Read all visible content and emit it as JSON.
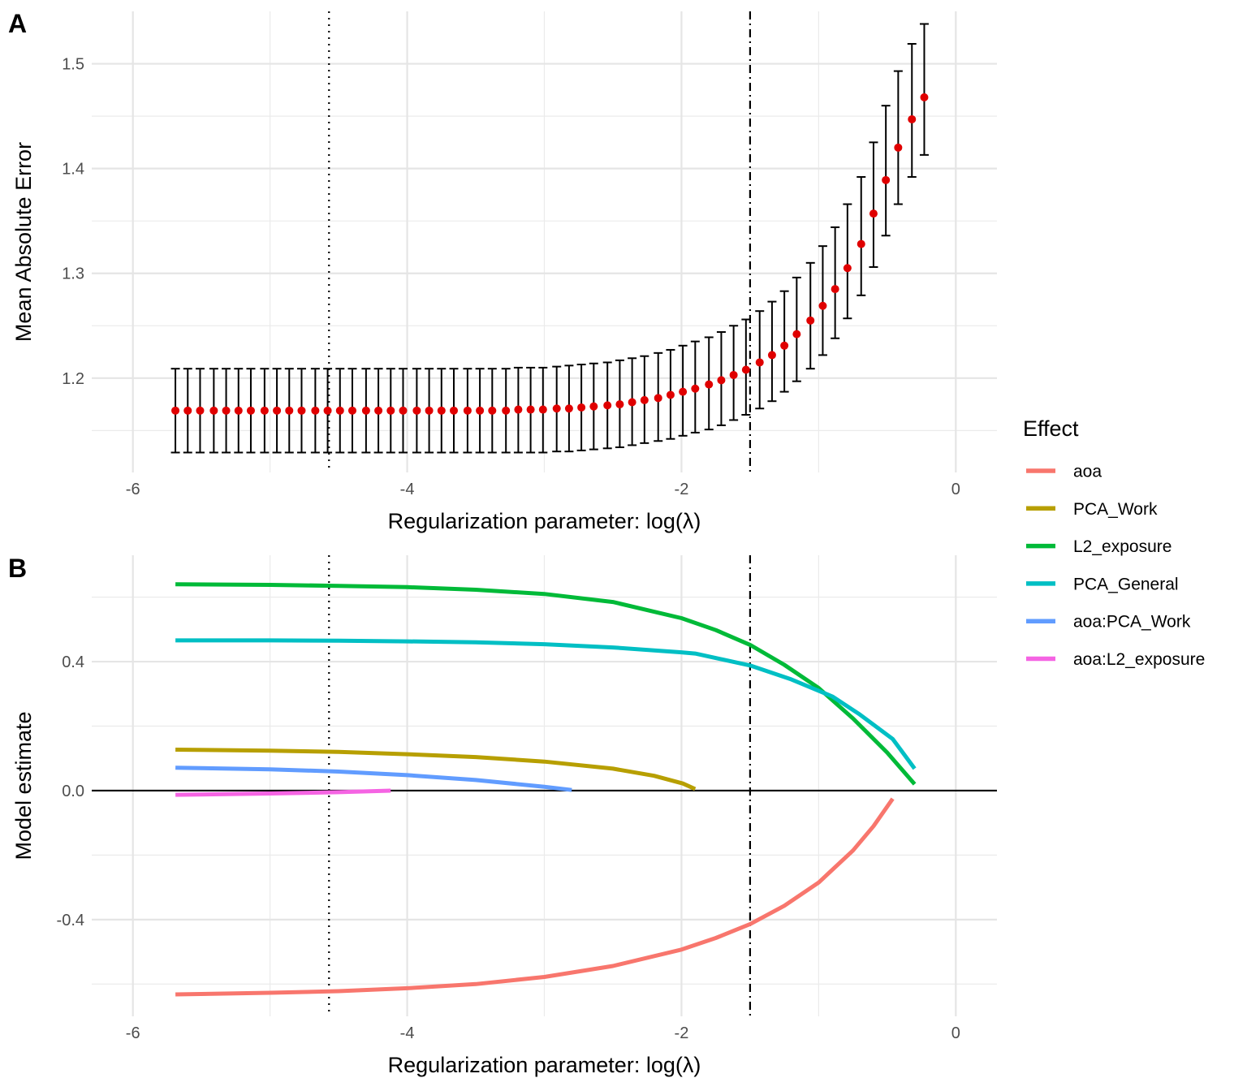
{
  "chart_data": [
    {
      "panel": "A",
      "type": "scatter",
      "subtype": "points-with-errorbars",
      "xlabel": "Regularization parameter: log(λ)",
      "ylabel": "Mean Absolute Error",
      "xlim": [
        -6.3,
        0.3
      ],
      "ylim": [
        1.11,
        1.55
      ],
      "xticks": [
        -6,
        -4,
        -2,
        0
      ],
      "xtick_labels": [
        "-6",
        "-4",
        "-2",
        "0"
      ],
      "yticks": [
        1.2,
        1.3,
        1.4,
        1.5
      ],
      "ytick_labels": [
        "1.2",
        "1.3",
        "1.4",
        "1.5"
      ],
      "grid": true,
      "point_color": "#e00000",
      "errorbar_color": "#000000",
      "vlines": [
        {
          "x": -4.57,
          "style": "dotted"
        },
        {
          "x": -1.5,
          "style": "dotdash"
        }
      ],
      "x": [
        -5.69,
        -5.6,
        -5.51,
        -5.41,
        -5.32,
        -5.23,
        -5.14,
        -5.04,
        -4.95,
        -4.86,
        -4.77,
        -4.67,
        -4.58,
        -4.49,
        -4.4,
        -4.3,
        -4.21,
        -4.12,
        -4.03,
        -3.93,
        -3.84,
        -3.75,
        -3.66,
        -3.56,
        -3.47,
        -3.38,
        -3.28,
        -3.19,
        -3.1,
        -3.01,
        -2.91,
        -2.82,
        -2.73,
        -2.64,
        -2.54,
        -2.45,
        -2.36,
        -2.27,
        -2.17,
        -2.08,
        -1.99,
        -1.9,
        -1.8,
        -1.71,
        -1.62,
        -1.53,
        -1.43,
        -1.34,
        -1.25,
        -1.16,
        -1.06,
        -0.97,
        -0.88,
        -0.79,
        -0.69,
        -0.6,
        -0.51,
        -0.42,
        -0.32,
        -0.23
      ],
      "mae": [
        1.169,
        1.169,
        1.169,
        1.169,
        1.169,
        1.169,
        1.169,
        1.169,
        1.169,
        1.169,
        1.169,
        1.169,
        1.169,
        1.169,
        1.169,
        1.169,
        1.169,
        1.169,
        1.169,
        1.169,
        1.169,
        1.169,
        1.169,
        1.169,
        1.169,
        1.169,
        1.169,
        1.17,
        1.17,
        1.17,
        1.171,
        1.171,
        1.172,
        1.173,
        1.174,
        1.175,
        1.177,
        1.179,
        1.181,
        1.184,
        1.187,
        1.19,
        1.194,
        1.198,
        1.203,
        1.208,
        1.215,
        1.222,
        1.231,
        1.242,
        1.255,
        1.269,
        1.285,
        1.305,
        1.328,
        1.357,
        1.389,
        1.42,
        1.447,
        1.468
      ],
      "lower": [
        1.129,
        1.129,
        1.129,
        1.129,
        1.129,
        1.129,
        1.129,
        1.129,
        1.129,
        1.129,
        1.129,
        1.129,
        1.129,
        1.129,
        1.129,
        1.129,
        1.129,
        1.129,
        1.129,
        1.129,
        1.129,
        1.129,
        1.129,
        1.129,
        1.129,
        1.129,
        1.129,
        1.129,
        1.129,
        1.129,
        1.13,
        1.13,
        1.131,
        1.132,
        1.133,
        1.134,
        1.136,
        1.138,
        1.14,
        1.142,
        1.145,
        1.148,
        1.151,
        1.155,
        1.16,
        1.165,
        1.171,
        1.178,
        1.187,
        1.197,
        1.209,
        1.222,
        1.238,
        1.257,
        1.279,
        1.306,
        1.336,
        1.366,
        1.392,
        1.413
      ],
      "upper": [
        1.209,
        1.209,
        1.209,
        1.209,
        1.209,
        1.209,
        1.209,
        1.209,
        1.209,
        1.209,
        1.209,
        1.209,
        1.209,
        1.209,
        1.209,
        1.209,
        1.209,
        1.209,
        1.209,
        1.209,
        1.209,
        1.209,
        1.209,
        1.209,
        1.209,
        1.209,
        1.209,
        1.21,
        1.21,
        1.21,
        1.211,
        1.212,
        1.213,
        1.214,
        1.215,
        1.217,
        1.219,
        1.221,
        1.224,
        1.227,
        1.231,
        1.235,
        1.239,
        1.244,
        1.25,
        1.256,
        1.264,
        1.273,
        1.283,
        1.296,
        1.31,
        1.326,
        1.344,
        1.366,
        1.392,
        1.425,
        1.46,
        1.493,
        1.519,
        1.538
      ]
    },
    {
      "panel": "B",
      "type": "line",
      "xlabel": "Regularization parameter: log(λ)",
      "ylabel": "Model estimate",
      "xlim": [
        -6.3,
        0.3
      ],
      "ylim": [
        -0.7,
        0.73
      ],
      "xticks": [
        -6,
        -4,
        -2,
        0
      ],
      "xtick_labels": [
        "-6",
        "-4",
        "-2",
        "0"
      ],
      "yticks": [
        -0.4,
        0.0,
        0.4
      ],
      "ytick_labels": [
        "-0.4",
        "0.0",
        "0.4"
      ],
      "grid": true,
      "hline": 0,
      "vlines": [
        {
          "x": -4.57,
          "style": "dotted"
        },
        {
          "x": -1.5,
          "style": "dotdash"
        }
      ],
      "legend": {
        "title": "Effect",
        "position": "right"
      },
      "series": [
        {
          "name": "aoa",
          "color": "#F8766D",
          "x": [
            -5.69,
            -5.0,
            -4.5,
            -4.0,
            -3.5,
            -3.0,
            -2.5,
            -2.0,
            -1.75,
            -1.5,
            -1.25,
            -1.0,
            -0.75,
            -0.6,
            -0.46
          ],
          "y": [
            -0.632,
            -0.627,
            -0.622,
            -0.613,
            -0.6,
            -0.578,
            -0.544,
            -0.493,
            -0.457,
            -0.414,
            -0.357,
            -0.285,
            -0.186,
            -0.11,
            -0.025
          ]
        },
        {
          "name": "PCA_Work",
          "color": "#B79F00",
          "x": [
            -5.69,
            -5.0,
            -4.5,
            -4.0,
            -3.5,
            -3.0,
            -2.5,
            -2.2,
            -1.99,
            -1.9
          ],
          "y": [
            0.127,
            0.124,
            0.12,
            0.113,
            0.104,
            0.09,
            0.068,
            0.046,
            0.022,
            0.005
          ]
        },
        {
          "name": "L2_exposure",
          "color": "#00BA38",
          "x": [
            -5.69,
            -5.0,
            -4.5,
            -4.0,
            -3.5,
            -3.0,
            -2.5,
            -2.0,
            -1.75,
            -1.5,
            -1.25,
            -1.0,
            -0.75,
            -0.5,
            -0.3
          ],
          "y": [
            0.64,
            0.638,
            0.635,
            0.631,
            0.623,
            0.61,
            0.585,
            0.535,
            0.498,
            0.452,
            0.39,
            0.318,
            0.224,
            0.118,
            0.02
          ]
        },
        {
          "name": "PCA_General",
          "color": "#00BFC4",
          "x": [
            -5.69,
            -5.0,
            -4.5,
            -4.0,
            -3.5,
            -3.0,
            -2.5,
            -2.0,
            -1.9,
            -1.5,
            -1.2,
            -0.9,
            -0.7,
            -0.46,
            -0.3
          ],
          "y": [
            0.466,
            0.466,
            0.465,
            0.463,
            0.46,
            0.454,
            0.444,
            0.429,
            0.425,
            0.388,
            0.345,
            0.292,
            0.236,
            0.16,
            0.068
          ]
        },
        {
          "name": "aoa:PCA_Work",
          "color": "#619CFF",
          "x": [
            -5.69,
            -5.0,
            -4.5,
            -4.0,
            -3.5,
            -3.0,
            -2.8
          ],
          "y": [
            0.071,
            0.066,
            0.059,
            0.048,
            0.033,
            0.012,
            0.002
          ]
        },
        {
          "name": "aoa:L2_exposure",
          "color": "#F564E3",
          "x": [
            -5.69,
            -5.0,
            -4.5,
            -4.12
          ],
          "y": [
            -0.013,
            -0.009,
            -0.005,
            0.0
          ]
        }
      ]
    }
  ],
  "panel_labels": {
    "a": "A",
    "b": "B"
  },
  "legend": {
    "title": "Effect",
    "items": [
      "aoa",
      "PCA_Work",
      "L2_exposure",
      "PCA_General",
      "aoa:PCA_Work",
      "aoa:L2_exposure"
    ]
  }
}
